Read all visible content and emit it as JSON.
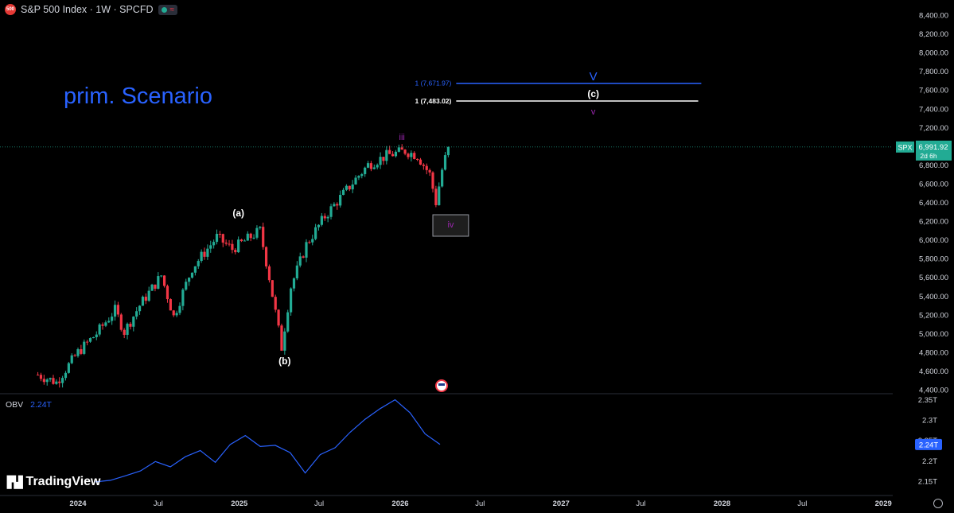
{
  "header": {
    "symbol_title": "S&P 500 Index · 1W · SPCFD",
    "logo_text": "500",
    "status_icons": [
      "market-open-dot-icon",
      "wave-icon"
    ]
  },
  "annotations": {
    "scenario_title": "prim. Scenario",
    "wave_a": "(a)",
    "wave_b": "(b)",
    "wave_c": "(c)",
    "wave_iii": "iii",
    "wave_iv": "iv",
    "wave_v_small": "v",
    "wave_V_large": "V",
    "fib_blue_label": "1 (7,671.97)",
    "fib_white_label": "1 (7,483.02)"
  },
  "price_badge": {
    "symbol": "SPX",
    "price": "6,991.92",
    "countdown": "2d 6h"
  },
  "obv": {
    "label": "OBV",
    "value": "2.24T",
    "badge": "2.24T"
  },
  "brand": {
    "name": "TradingView"
  },
  "colors": {
    "up": "#22ab94",
    "down": "#f23645",
    "blue_line": "#2962ff",
    "obv_line": "#2962ff",
    "wave_purple": "#9c27b0",
    "title_blue": "#2962ff"
  },
  "chart_data": [
    {
      "type": "candlestick",
      "title": "S&P 500 Index · 1W · SPCFD",
      "y_ticks": [
        "8,400.00",
        "8,200.00",
        "8,000.00",
        "7,800.00",
        "7,600.00",
        "7,400.00",
        "7,200.00",
        "6,800.00",
        "6,600.00",
        "6,400.00",
        "6,200.00",
        "6,000.00",
        "5,800.00",
        "5,600.00",
        "5,400.00",
        "5,200.00",
        "5,000.00",
        "4,800.00",
        "4,600.00",
        "4,400.00"
      ],
      "ylim": [
        4380,
        8450
      ],
      "x_ticks": [
        "2024",
        "Jul",
        "2025",
        "Jul",
        "2026",
        "Jul",
        "2027",
        "Jul",
        "2028",
        "Jul",
        "2029"
      ],
      "close_points": [
        [
          "2023-10-02",
          4560
        ],
        [
          "2023-11-13",
          4480
        ],
        [
          "2024-01-01",
          4800
        ],
        [
          "2024-02-12",
          5000
        ],
        [
          "2024-03-25",
          5250
        ],
        [
          "2024-04-15",
          5020
        ],
        [
          "2024-05-20",
          5300
        ],
        [
          "2024-07-08",
          5620
        ],
        [
          "2024-08-05",
          5180
        ],
        [
          "2024-09-16",
          5700
        ],
        [
          "2024-11-11",
          6030
        ],
        [
          "2024-12-16",
          5900
        ],
        [
          "2025-02-17",
          6100
        ],
        [
          "2025-03-10",
          5600
        ],
        [
          "2025-04-07",
          4850
        ],
        [
          "2025-04-28",
          5500
        ],
        [
          "2025-06-02",
          5950
        ],
        [
          "2025-07-14",
          6250
        ],
        [
          "2025-08-18",
          6450
        ],
        [
          "2025-09-22",
          6650
        ],
        [
          "2025-10-20",
          6800
        ],
        [
          "2025-12-01",
          6900
        ],
        [
          "2026-01-12",
          6950
        ],
        [
          "2026-02-09",
          6900
        ],
        [
          "2026-03-09",
          6700
        ],
        [
          "2026-03-23",
          6400
        ],
        [
          "2026-04-06",
          6750
        ],
        [
          "2026-04-20",
          6991.92
        ]
      ],
      "last_price": 6991.92,
      "fib_levels": [
        {
          "label": "1 (7,671.97)",
          "value": 7671.97,
          "color": "#2962ff"
        },
        {
          "label": "1 (7,483.02)",
          "value": 7483.02,
          "color": "#ffffff"
        }
      ]
    },
    {
      "type": "line",
      "series": [
        {
          "name": "OBV",
          "values": [
            2.148,
            2.152,
            2.163,
            2.175,
            2.198,
            2.185,
            2.21,
            2.225,
            2.196,
            2.24,
            2.262,
            2.235,
            2.238,
            2.22,
            2.17,
            2.215,
            2.232,
            2.27,
            2.302,
            2.328,
            2.35,
            2.318,
            2.266,
            2.24
          ]
        }
      ],
      "y_ticks": [
        "2.35T",
        "2.3T",
        "2.25T",
        "2.2T",
        "2.15T"
      ],
      "ylim": [
        2.13,
        2.36
      ]
    }
  ]
}
